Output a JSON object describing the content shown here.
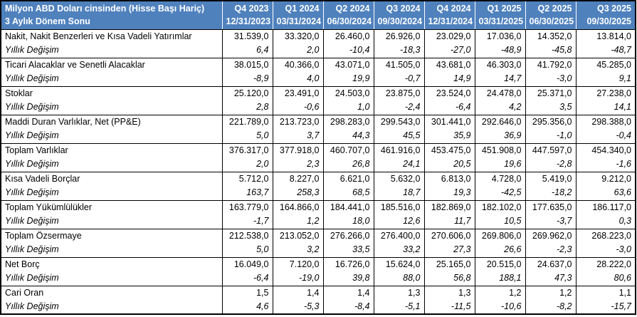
{
  "chart_data": {
    "type": "table",
    "title_line1": "Milyon ABD Doları cinsinden (Hisse Başı Hariç)",
    "title_line2": "3 Aylık Dönem Sonu",
    "yoy_row_label": "Yıllık Değişim",
    "columns": [
      {
        "quarter": "Q4 2023",
        "date": "12/31/2023"
      },
      {
        "quarter": "Q1 2024",
        "date": "03/31/2024"
      },
      {
        "quarter": "Q2 2024",
        "date": "06/30/2024"
      },
      {
        "quarter": "Q3 2024",
        "date": "09/30/2024"
      },
      {
        "quarter": "Q4 2024",
        "date": "12/31/2024"
      },
      {
        "quarter": "Q1 2025",
        "date": "03/31/2025"
      },
      {
        "quarter": "Q2 2025",
        "date": "06/30/2025"
      },
      {
        "quarter": "Q3 2025",
        "date": "09/30/2025"
      }
    ],
    "rows": [
      {
        "label": "Nakit, Nakit Benzerleri ve Kısa Vadeli Yatırımlar",
        "values": [
          "31.539,0",
          "33.320,0",
          "26.460,0",
          "26.926,0",
          "23.029,0",
          "17.036,0",
          "14.352,0",
          "13.814,0"
        ],
        "yoy": [
          "6,4",
          "2,0",
          "-10,4",
          "-18,3",
          "-27,0",
          "-48,9",
          "-45,8",
          "-48,7"
        ]
      },
      {
        "label": "Ticari Alacaklar ve Senetli Alacaklar",
        "values": [
          "38.015,0",
          "40.366,0",
          "43.071,0",
          "41.505,0",
          "43.681,0",
          "46.303,0",
          "41.792,0",
          "45.285,0"
        ],
        "yoy": [
          "-8,9",
          "4,0",
          "19,9",
          "-0,7",
          "14,9",
          "14,7",
          "-3,0",
          "9,1"
        ]
      },
      {
        "label": "Stoklar",
        "values": [
          "25.120,0",
          "23.491,0",
          "24.503,0",
          "23.875,0",
          "23.524,0",
          "24.478,0",
          "25.371,0",
          "27.238,0"
        ],
        "yoy": [
          "2,8",
          "-0,6",
          "1,0",
          "-2,4",
          "-6,4",
          "4,2",
          "3,5",
          "14,1"
        ]
      },
      {
        "label": "Maddi Duran Varlıklar, Net (PP&E)",
        "values": [
          "221.789,0",
          "213.723,0",
          "298.283,0",
          "299.543,0",
          "301.441,0",
          "292.646,0",
          "295.356,0",
          "298.388,0"
        ],
        "yoy": [
          "5,0",
          "3,7",
          "44,3",
          "45,5",
          "35,9",
          "36,9",
          "-1,0",
          "-0,4"
        ]
      },
      {
        "label": "Toplam Varlıklar",
        "values": [
          "376.317,0",
          "377.918,0",
          "460.707,0",
          "461.916,0",
          "453.475,0",
          "451.908,0",
          "447.597,0",
          "454.340,0"
        ],
        "yoy": [
          "2,0",
          "2,3",
          "26,8",
          "24,1",
          "20,5",
          "19,6",
          "-2,8",
          "-1,6"
        ]
      },
      {
        "label": "Kısa Vadeli Borçlar",
        "values": [
          "5.712,0",
          "8.227,0",
          "6.621,0",
          "5.632,0",
          "6.813,0",
          "4.728,0",
          "5.419,0",
          "9.212,0"
        ],
        "yoy": [
          "163,7",
          "258,3",
          "68,5",
          "18,7",
          "19,3",
          "-42,5",
          "-18,2",
          "63,6"
        ]
      },
      {
        "label": "Toplam Yükümlülükler",
        "values": [
          "163.779,0",
          "164.866,0",
          "184.441,0",
          "185.516,0",
          "182.869,0",
          "182.102,0",
          "177.635,0",
          "186.117,0"
        ],
        "yoy": [
          "-1,7",
          "1,2",
          "18,0",
          "12,6",
          "11,7",
          "10,5",
          "-3,7",
          "0,3"
        ]
      },
      {
        "label": "Toplam Özsermaye",
        "values": [
          "212.538,0",
          "213.052,0",
          "276.266,0",
          "276.400,0",
          "270.606,0",
          "269.806,0",
          "269.962,0",
          "268.223,0"
        ],
        "yoy": [
          "5,0",
          "3,2",
          "33,5",
          "33,2",
          "27,3",
          "26,6",
          "-2,3",
          "-3,0"
        ]
      },
      {
        "label": "Net Borç",
        "values": [
          "16.049,0",
          "7.120,0",
          "16.726,0",
          "15.624,0",
          "25.165,0",
          "20.515,0",
          "24.637,0",
          "28.222,0"
        ],
        "yoy": [
          "-6,4",
          "-19,0",
          "39,8",
          "88,0",
          "56,8",
          "188,1",
          "47,3",
          "80,6"
        ]
      },
      {
        "label": "Cari Oran",
        "values": [
          "1,5",
          "1,4",
          "1,4",
          "1,3",
          "1,3",
          "1,2",
          "1,2",
          "1,1"
        ],
        "yoy": [
          "4,6",
          "-5,3",
          "-8,4",
          "-5,1",
          "-11,5",
          "-10,6",
          "-8,2",
          "-15,7"
        ]
      }
    ]
  },
  "colors": {
    "header_bg": "#4F81BD",
    "header_text": "#FFFFFF",
    "body_bg": "#FFFFFF",
    "body_text": "#000000",
    "border": "#000000",
    "header_divider": "#FFFFFF"
  }
}
